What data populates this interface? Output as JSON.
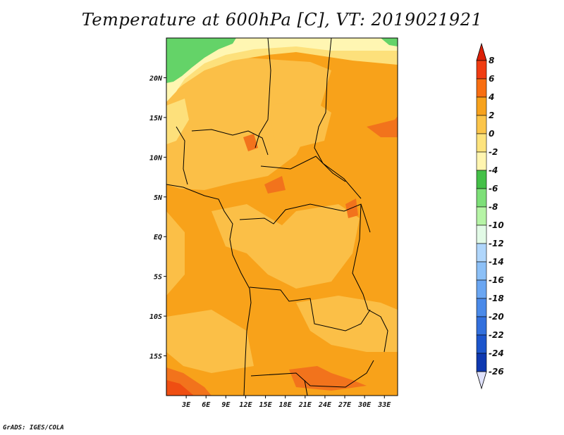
{
  "title": "Temperature at 600hPa [C], VT: 2019021921",
  "credit": "GrADS: IGES/COLA",
  "map": {
    "lon_range": [
      0,
      35
    ],
    "lat_range": [
      -20,
      25
    ],
    "lat_ticks": [
      {
        "value": 20,
        "label": "20N"
      },
      {
        "value": 15,
        "label": "15N"
      },
      {
        "value": 10,
        "label": "10N"
      },
      {
        "value": 5,
        "label": "5N"
      },
      {
        "value": 0,
        "label": "EQ"
      },
      {
        "value": -5,
        "label": "5S"
      },
      {
        "value": -10,
        "label": "10S"
      },
      {
        "value": -15,
        "label": "15S"
      }
    ],
    "lon_ticks": [
      {
        "value": 3,
        "label": "3E"
      },
      {
        "value": 6,
        "label": "6E"
      },
      {
        "value": 9,
        "label": "9E"
      },
      {
        "value": 12,
        "label": "12E"
      },
      {
        "value": 15,
        "label": "15E"
      },
      {
        "value": 18,
        "label": "18E"
      },
      {
        "value": 21,
        "label": "21E"
      },
      {
        "value": 24,
        "label": "24E"
      },
      {
        "value": 27,
        "label": "27E"
      },
      {
        "value": 30,
        "label": "30E"
      },
      {
        "value": 33,
        "label": "33E"
      }
    ]
  },
  "colorbar": {
    "levels": [
      "8",
      "6",
      "4",
      "2",
      "0",
      "-2",
      "-4",
      "-6",
      "-8",
      "-10",
      "-12",
      "-14",
      "-16",
      "-18",
      "-20",
      "-22",
      "-24",
      "-26"
    ],
    "colors": [
      "#f03c12",
      "#f86e12",
      "#f7a21d",
      "#fbc54a",
      "#fde37d",
      "#fff5b0",
      "#44c048",
      "#7ddf78",
      "#b6f4a6",
      "#e2fae6",
      "#b0d6fb",
      "#8cc0f7",
      "#6aa6f2",
      "#4a8ae9",
      "#3270dd",
      "#1c55cc",
      "#0e38b0",
      "#071a80"
    ],
    "top_color": "#dc2008",
    "bottom_color": "#e0e2fb"
  },
  "colors": {
    "land_base": "#f8a21a",
    "warm_light": "#fbbf47",
    "warm_pale": "#fde07b",
    "cool_yellow": "#fff6b2",
    "cool_green": "#64d368",
    "hot": "#f2731c",
    "hottest": "#ef4e12",
    "border": "#000000"
  }
}
